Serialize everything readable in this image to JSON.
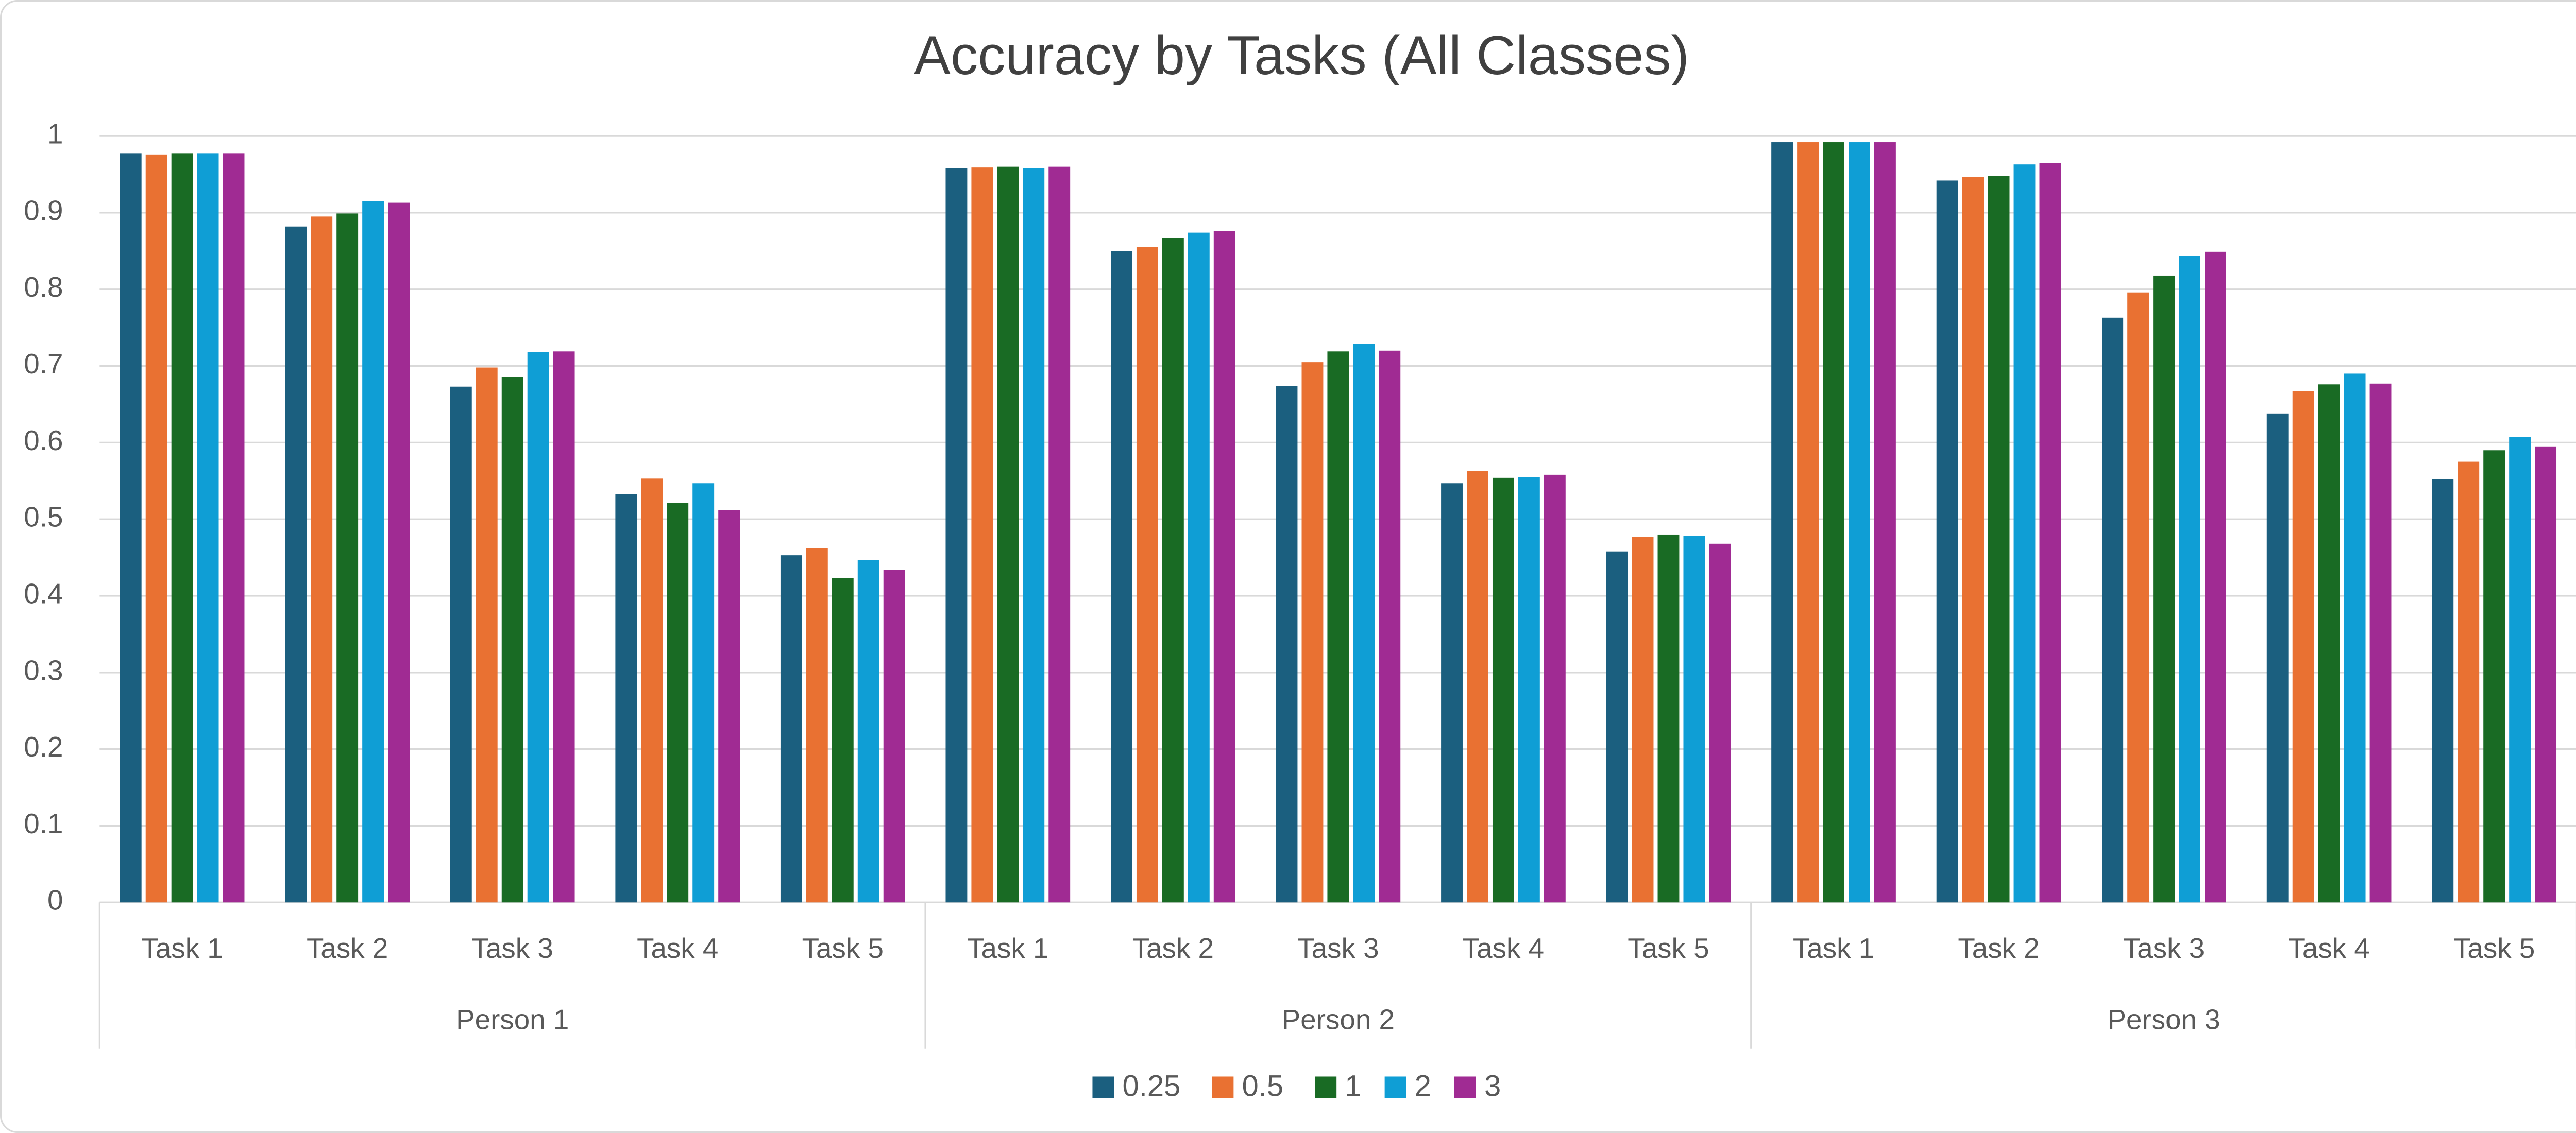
{
  "chart_data": {
    "type": "bar",
    "title": "Accuracy by Tasks (All Classes)",
    "categories": [
      "Task 1",
      "Task 2",
      "Task 3",
      "Task 4",
      "Task 5",
      "Task 1",
      "Task 2",
      "Task 3",
      "Task 4",
      "Task 5",
      "Task 1",
      "Task 2",
      "Task 3",
      "Task 4",
      "Task 5"
    ],
    "groups": [
      "Person 1",
      "Person 2",
      "Person 3"
    ],
    "series": [
      {
        "name": "0.25",
        "color": "#1b5f7f",
        "values": [
          0.977,
          0.882,
          0.673,
          0.533,
          0.453,
          0.958,
          0.85,
          0.674,
          0.547,
          0.458,
          0.992,
          0.942,
          0.763,
          0.638,
          0.552
        ]
      },
      {
        "name": "0.5",
        "color": "#e97132",
        "values": [
          0.976,
          0.895,
          0.698,
          0.553,
          0.462,
          0.959,
          0.855,
          0.705,
          0.563,
          0.477,
          0.992,
          0.947,
          0.796,
          0.667,
          0.575
        ]
      },
      {
        "name": "1",
        "color": "#196b24",
        "values": [
          0.977,
          0.899,
          0.685,
          0.521,
          0.423,
          0.96,
          0.867,
          0.719,
          0.554,
          0.48,
          0.992,
          0.948,
          0.818,
          0.676,
          0.59
        ]
      },
      {
        "name": "2",
        "color": "#0f9ed5",
        "values": [
          0.977,
          0.915,
          0.718,
          0.547,
          0.447,
          0.958,
          0.874,
          0.729,
          0.555,
          0.478,
          0.992,
          0.963,
          0.843,
          0.69,
          0.607
        ]
      },
      {
        "name": "3",
        "color": "#a02b93",
        "values": [
          0.977,
          0.913,
          0.719,
          0.512,
          0.434,
          0.96,
          0.876,
          0.72,
          0.558,
          0.468,
          0.992,
          0.965,
          0.849,
          0.677,
          0.595
        ]
      }
    ],
    "ylim": [
      0,
      1
    ],
    "yticks": [
      0,
      0.1,
      0.2,
      0.3,
      0.4,
      0.5,
      0.6,
      0.7,
      0.8,
      0.9,
      1
    ],
    "grid": true,
    "legend": "bottom"
  }
}
